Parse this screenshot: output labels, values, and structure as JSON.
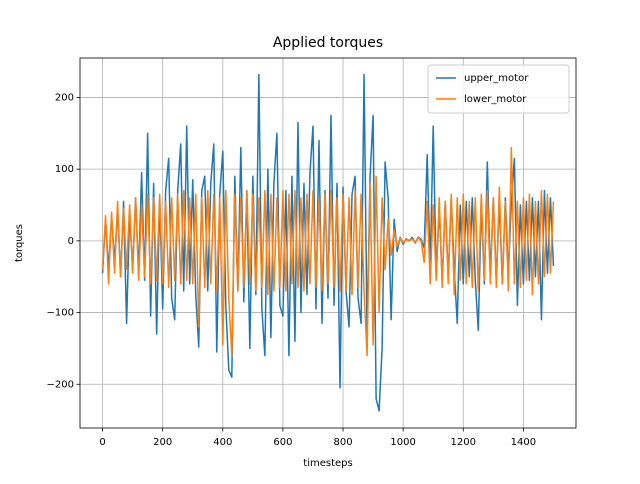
{
  "chart_data": {
    "type": "line",
    "title": "Applied torques",
    "x_label": "timesteps",
    "y_label": "torques",
    "x": [
      0,
      10,
      20,
      30,
      40,
      50,
      60,
      70,
      80,
      90,
      100,
      110,
      120,
      130,
      140,
      150,
      160,
      170,
      180,
      190,
      200,
      210,
      220,
      230,
      240,
      250,
      260,
      270,
      280,
      290,
      300,
      310,
      320,
      330,
      340,
      350,
      360,
      370,
      380,
      390,
      400,
      410,
      420,
      430,
      440,
      450,
      460,
      470,
      480,
      490,
      500,
      510,
      520,
      530,
      540,
      550,
      560,
      570,
      580,
      590,
      600,
      610,
      620,
      630,
      640,
      650,
      660,
      670,
      680,
      690,
      700,
      710,
      720,
      730,
      740,
      750,
      760,
      770,
      780,
      790,
      800,
      810,
      820,
      830,
      840,
      850,
      860,
      870,
      880,
      890,
      900,
      910,
      920,
      930,
      940,
      950,
      960,
      970,
      980,
      990,
      1000,
      1010,
      1020,
      1030,
      1040,
      1050,
      1060,
      1070,
      1080,
      1090,
      1100,
      1110,
      1120,
      1130,
      1140,
      1150,
      1160,
      1170,
      1180,
      1190,
      1200,
      1210,
      1220,
      1230,
      1240,
      1250,
      1260,
      1270,
      1280,
      1290,
      1300,
      1310,
      1320,
      1330,
      1340,
      1350,
      1360,
      1370,
      1380,
      1390,
      1400,
      1410,
      1420,
      1430,
      1440,
      1450,
      1460,
      1470,
      1480,
      1490,
      1500
    ],
    "series": [
      {
        "name": "upper_motor",
        "color": "#1f77b4",
        "values": [
          -45,
          30,
          -40,
          35,
          -30,
          45,
          -50,
          55,
          -115,
          40,
          -40,
          60,
          -45,
          95,
          -55,
          150,
          -105,
          80,
          -130,
          60,
          -95,
          70,
          115,
          -80,
          -110,
          70,
          135,
          -70,
          160,
          -60,
          85,
          -75,
          -148,
          70,
          90,
          -70,
          80,
          135,
          -155,
          65,
          125,
          -90,
          -180,
          -190,
          90,
          -70,
          130,
          -85,
          70,
          -150,
          90,
          -75,
          232,
          -95,
          -160,
          100,
          -135,
          80,
          150,
          -90,
          -105,
          70,
          -160,
          90,
          -140,
          165,
          -100,
          80,
          -75,
          95,
          160,
          -95,
          140,
          -115,
          70,
          -80,
          175,
          -90,
          80,
          -205,
          75,
          -70,
          -120,
          65,
          90,
          -80,
          -115,
          232,
          -130,
          90,
          175,
          -220,
          -237,
          -150,
          110,
          60,
          -110,
          30,
          -15,
          5,
          -5,
          3,
          0,
          5,
          -3,
          5,
          2,
          -10,
          120,
          -40,
          160,
          -50,
          45,
          -55,
          55,
          -50,
          60,
          -40,
          -115,
          50,
          -60,
          55,
          -50,
          60,
          -55,
          -125,
          55,
          -60,
          110,
          -50,
          60,
          -55,
          55,
          -60,
          60,
          -45,
          55,
          115,
          -90,
          50,
          -60,
          55,
          -55,
          60,
          -50,
          55,
          -110,
          70,
          -45,
          60,
          -35
        ]
      },
      {
        "name": "lower_motor",
        "color": "#ff7f0e",
        "values": [
          -40,
          35,
          -60,
          40,
          -45,
          55,
          -50,
          45,
          -40,
          50,
          -45,
          60,
          -55,
          50,
          -50,
          65,
          -60,
          60,
          -55,
          65,
          -60,
          55,
          -65,
          60,
          -55,
          65,
          -60,
          70,
          -55,
          60,
          -60,
          65,
          -120,
          60,
          -65,
          70,
          -60,
          65,
          -70,
          60,
          -145,
          70,
          -80,
          -160,
          65,
          -70,
          60,
          -65,
          70,
          -60,
          65,
          -70,
          60,
          -65,
          70,
          -75,
          65,
          -70,
          60,
          -65,
          70,
          -70,
          65,
          -60,
          70,
          -65,
          60,
          -70,
          65,
          -60,
          70,
          -65,
          60,
          -70,
          65,
          -60,
          70,
          -65,
          60,
          -70,
          65,
          -70,
          60,
          -75,
          70,
          -65,
          65,
          -70,
          -160,
          80,
          -145,
          90,
          -100,
          60,
          -40,
          30,
          -20,
          15,
          -8,
          4,
          -3,
          2,
          0,
          3,
          -2,
          4,
          0,
          -30,
          55,
          -60,
          50,
          -55,
          60,
          -65,
          55,
          -60,
          65,
          -75,
          60,
          -55,
          65,
          -60,
          55,
          -65,
          60,
          -70,
          65,
          -55,
          70,
          -60,
          60,
          -65,
          75,
          -60,
          55,
          -70,
          130,
          -60,
          55,
          -65,
          60,
          -55,
          65,
          -75,
          55,
          -60,
          70,
          -50,
          65,
          -45,
          55
        ]
      }
    ],
    "xlim": [
      -75,
      1575
    ],
    "ylim": [
      -261,
      255
    ],
    "xticks": [
      0,
      200,
      400,
      600,
      800,
      1000,
      1200,
      1400
    ],
    "yticks": [
      {
        "value": -200,
        "label": "−200"
      },
      {
        "value": -100,
        "label": "−100"
      },
      0,
      100,
      200
    ],
    "grid": true,
    "legend": "upper right"
  }
}
